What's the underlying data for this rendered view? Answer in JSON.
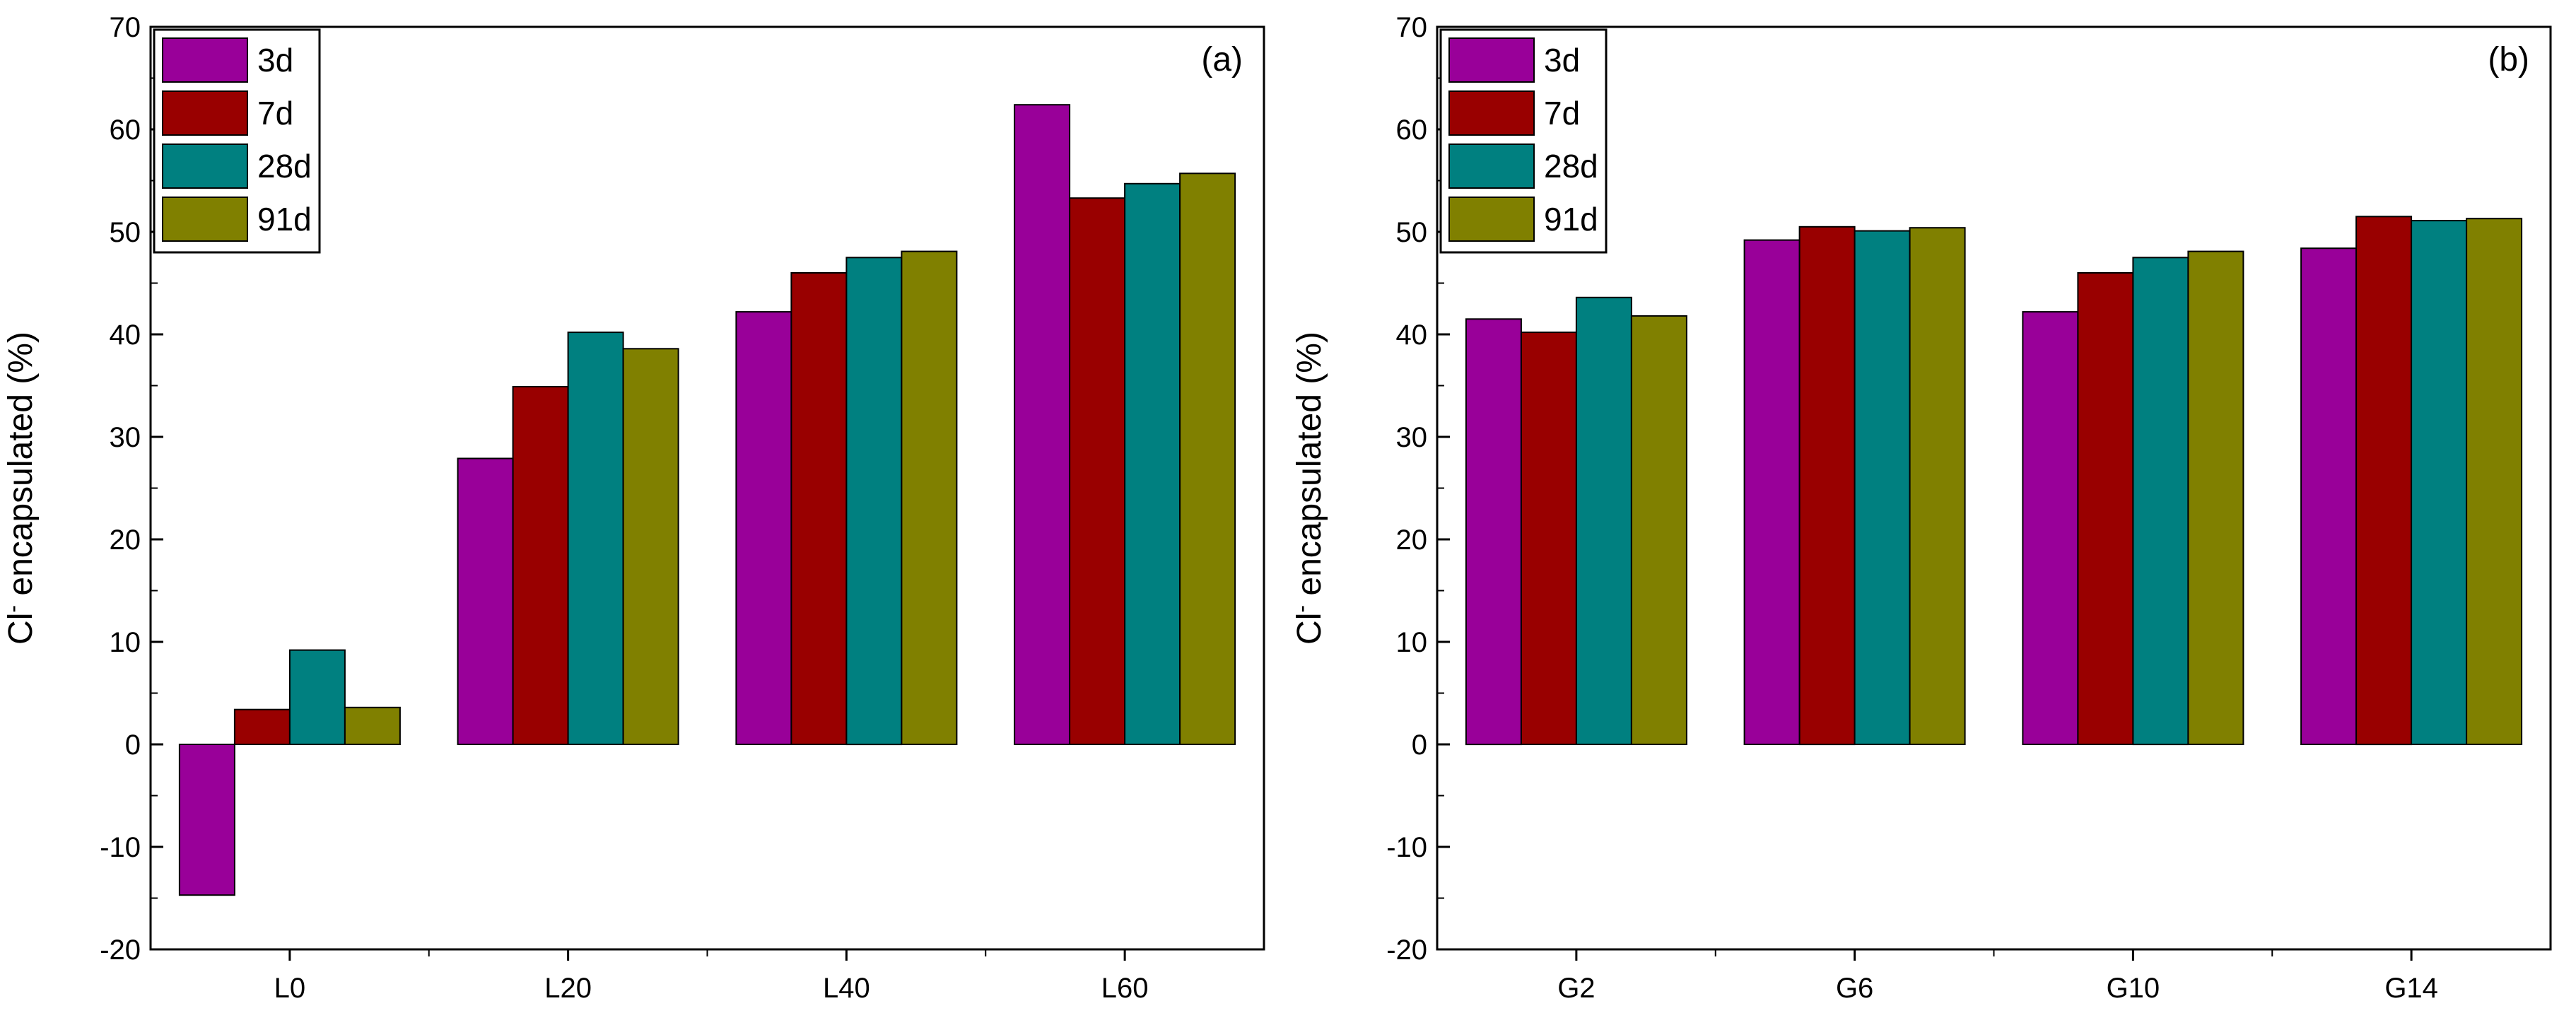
{
  "chart_data": [
    {
      "type": "bar",
      "panel": "(a)",
      "categories": [
        "L0",
        "L20",
        "L40",
        "L60"
      ],
      "series": [
        {
          "name": "3d",
          "color": "#990099",
          "values": [
            -14.7,
            27.9,
            42.2,
            62.4
          ]
        },
        {
          "name": "7d",
          "color": "#990000",
          "values": [
            3.4,
            34.9,
            46.0,
            53.3
          ]
        },
        {
          "name": "28d",
          "color": "#008080",
          "values": [
            9.2,
            40.2,
            47.5,
            54.7
          ]
        },
        {
          "name": "91d",
          "color": "#808000",
          "values": [
            3.6,
            38.6,
            48.1,
            55.7
          ]
        }
      ],
      "ylabel": "Cl⁻ encapsulated (%)",
      "ylabel_main": "Cl",
      "ylabel_sup": "-",
      "ylabel_rest": " encapsulated (%)",
      "xlabel": "",
      "ylim": [
        -20,
        70
      ],
      "yticks": [
        -20,
        -10,
        0,
        10,
        20,
        30,
        40,
        50,
        60,
        70
      ],
      "legend_position": "top-left"
    },
    {
      "type": "bar",
      "panel": "(b)",
      "categories": [
        "G2",
        "G6",
        "G10",
        "G14"
      ],
      "series": [
        {
          "name": "3d",
          "color": "#990099",
          "values": [
            41.5,
            49.2,
            42.2,
            48.4
          ]
        },
        {
          "name": "7d",
          "color": "#990000",
          "values": [
            40.2,
            50.5,
            46.0,
            51.5
          ]
        },
        {
          "name": "28d",
          "color": "#008080",
          "values": [
            43.6,
            50.1,
            47.5,
            51.1
          ]
        },
        {
          "name": "91d",
          "color": "#808000",
          "values": [
            41.8,
            50.4,
            48.1,
            51.3
          ]
        }
      ],
      "ylabel": "Cl⁻ encapsulated (%)",
      "ylabel_main": "Cl",
      "ylabel_sup": "-",
      "ylabel_rest": " encapsulated (%)",
      "xlabel": "",
      "ylim": [
        -20,
        70
      ],
      "yticks": [
        -20,
        -10,
        0,
        10,
        20,
        30,
        40,
        50,
        60,
        70
      ],
      "legend_position": "top-left"
    }
  ]
}
